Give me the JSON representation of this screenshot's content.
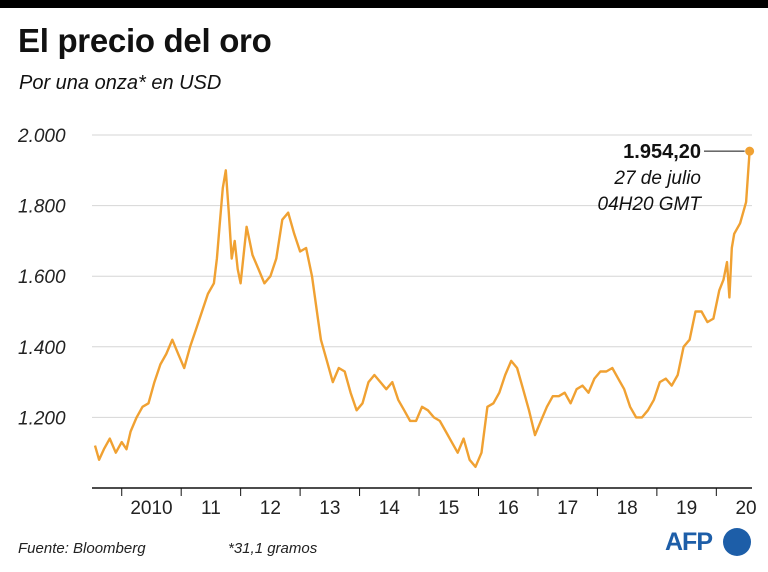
{
  "header": {
    "title": "El precio del oro",
    "subtitle": "Por una onza* en USD"
  },
  "colors": {
    "line": "#f0a132",
    "grid": "#d6d6d6",
    "axis": "#111111",
    "logo": "#1d5ea8"
  },
  "chart_data": {
    "type": "line",
    "title": "El precio del oro",
    "subtitle": "Por una onza* en USD",
    "xlabel": "",
    "ylabel": "",
    "grid": true,
    "legend": "none",
    "xlim": [
      2009.5,
      2020.6
    ],
    "ylim": [
      1000,
      2000
    ],
    "y_ticks": [
      1200,
      1400,
      1600,
      1800,
      2000
    ],
    "y_tick_labels": [
      "1.200",
      "1.400",
      "1.600",
      "1.800",
      "2.000"
    ],
    "x_ticks": [
      2010,
      2011,
      2012,
      2013,
      2014,
      2015,
      2016,
      2017,
      2018,
      2019,
      2020
    ],
    "x_tick_labels": [
      "2010",
      "11",
      "12",
      "13",
      "14",
      "15",
      "16",
      "17",
      "18",
      "19",
      "20"
    ],
    "series": [
      {
        "x": [
          2009.55,
          2009.62,
          2009.7,
          2009.8,
          2009.9,
          2010.0,
          2010.08,
          2010.15,
          2010.25,
          2010.35,
          2010.45,
          2010.55,
          2010.65,
          2010.75,
          2010.85,
          2010.95,
          2011.05,
          2011.15,
          2011.25,
          2011.35,
          2011.45,
          2011.55,
          2011.6,
          2011.65,
          2011.7,
          2011.75,
          2011.8,
          2011.85,
          2011.9,
          2011.95,
          2012.0,
          2012.05,
          2012.1,
          2012.15,
          2012.2,
          2012.3,
          2012.4,
          2012.5,
          2012.6,
          2012.7,
          2012.8,
          2012.9,
          2013.0,
          2013.1,
          2013.2,
          2013.3,
          2013.35,
          2013.45,
          2013.55,
          2013.65,
          2013.75,
          2013.85,
          2013.95,
          2014.05,
          2014.15,
          2014.25,
          2014.35,
          2014.45,
          2014.55,
          2014.65,
          2014.75,
          2014.85,
          2014.95,
          2015.05,
          2015.15,
          2015.25,
          2015.35,
          2015.45,
          2015.55,
          2015.65,
          2015.75,
          2015.85,
          2015.95,
          2016.05,
          2016.15,
          2016.25,
          2016.35,
          2016.45,
          2016.55,
          2016.65,
          2016.75,
          2016.85,
          2016.95,
          2017.05,
          2017.15,
          2017.25,
          2017.35,
          2017.45,
          2017.55,
          2017.65,
          2017.75,
          2017.85,
          2017.95,
          2018.05,
          2018.15,
          2018.25,
          2018.35,
          2018.45,
          2018.55,
          2018.65,
          2018.75,
          2018.85,
          2018.95,
          2019.05,
          2019.15,
          2019.25,
          2019.35,
          2019.45,
          2019.55,
          2019.65,
          2019.75,
          2019.85,
          2019.95,
          2020.05,
          2020.12,
          2020.18,
          2020.22,
          2020.26,
          2020.3,
          2020.4,
          2020.5,
          2020.56
        ],
        "y": [
          1120,
          1080,
          1110,
          1140,
          1100,
          1130,
          1110,
          1160,
          1200,
          1230,
          1240,
          1300,
          1350,
          1380,
          1420,
          1380,
          1340,
          1400,
          1450,
          1500,
          1550,
          1580,
          1650,
          1750,
          1850,
          1900,
          1780,
          1650,
          1700,
          1620,
          1580,
          1660,
          1740,
          1700,
          1660,
          1620,
          1580,
          1600,
          1650,
          1760,
          1780,
          1720,
          1670,
          1680,
          1600,
          1480,
          1420,
          1360,
          1300,
          1340,
          1330,
          1270,
          1220,
          1240,
          1300,
          1320,
          1300,
          1280,
          1300,
          1250,
          1220,
          1190,
          1190,
          1230,
          1220,
          1200,
          1190,
          1160,
          1130,
          1100,
          1140,
          1080,
          1060,
          1100,
          1230,
          1240,
          1270,
          1320,
          1360,
          1340,
          1280,
          1220,
          1150,
          1190,
          1230,
          1260,
          1260,
          1270,
          1240,
          1280,
          1290,
          1270,
          1310,
          1330,
          1330,
          1340,
          1310,
          1280,
          1230,
          1200,
          1200,
          1220,
          1250,
          1300,
          1310,
          1290,
          1320,
          1400,
          1420,
          1500,
          1500,
          1470,
          1480,
          1560,
          1590,
          1640,
          1540,
          1680,
          1720,
          1750,
          1810,
          1954.2
        ]
      }
    ],
    "annotation": {
      "value": "1.954,20",
      "date": "27 de julio",
      "time": "04H20 GMT",
      "x": 2020.56,
      "y": 1954.2
    }
  },
  "footer": {
    "source": "Fuente: Bloomberg",
    "note": "*31,1 gramos",
    "logo": "AFP"
  }
}
